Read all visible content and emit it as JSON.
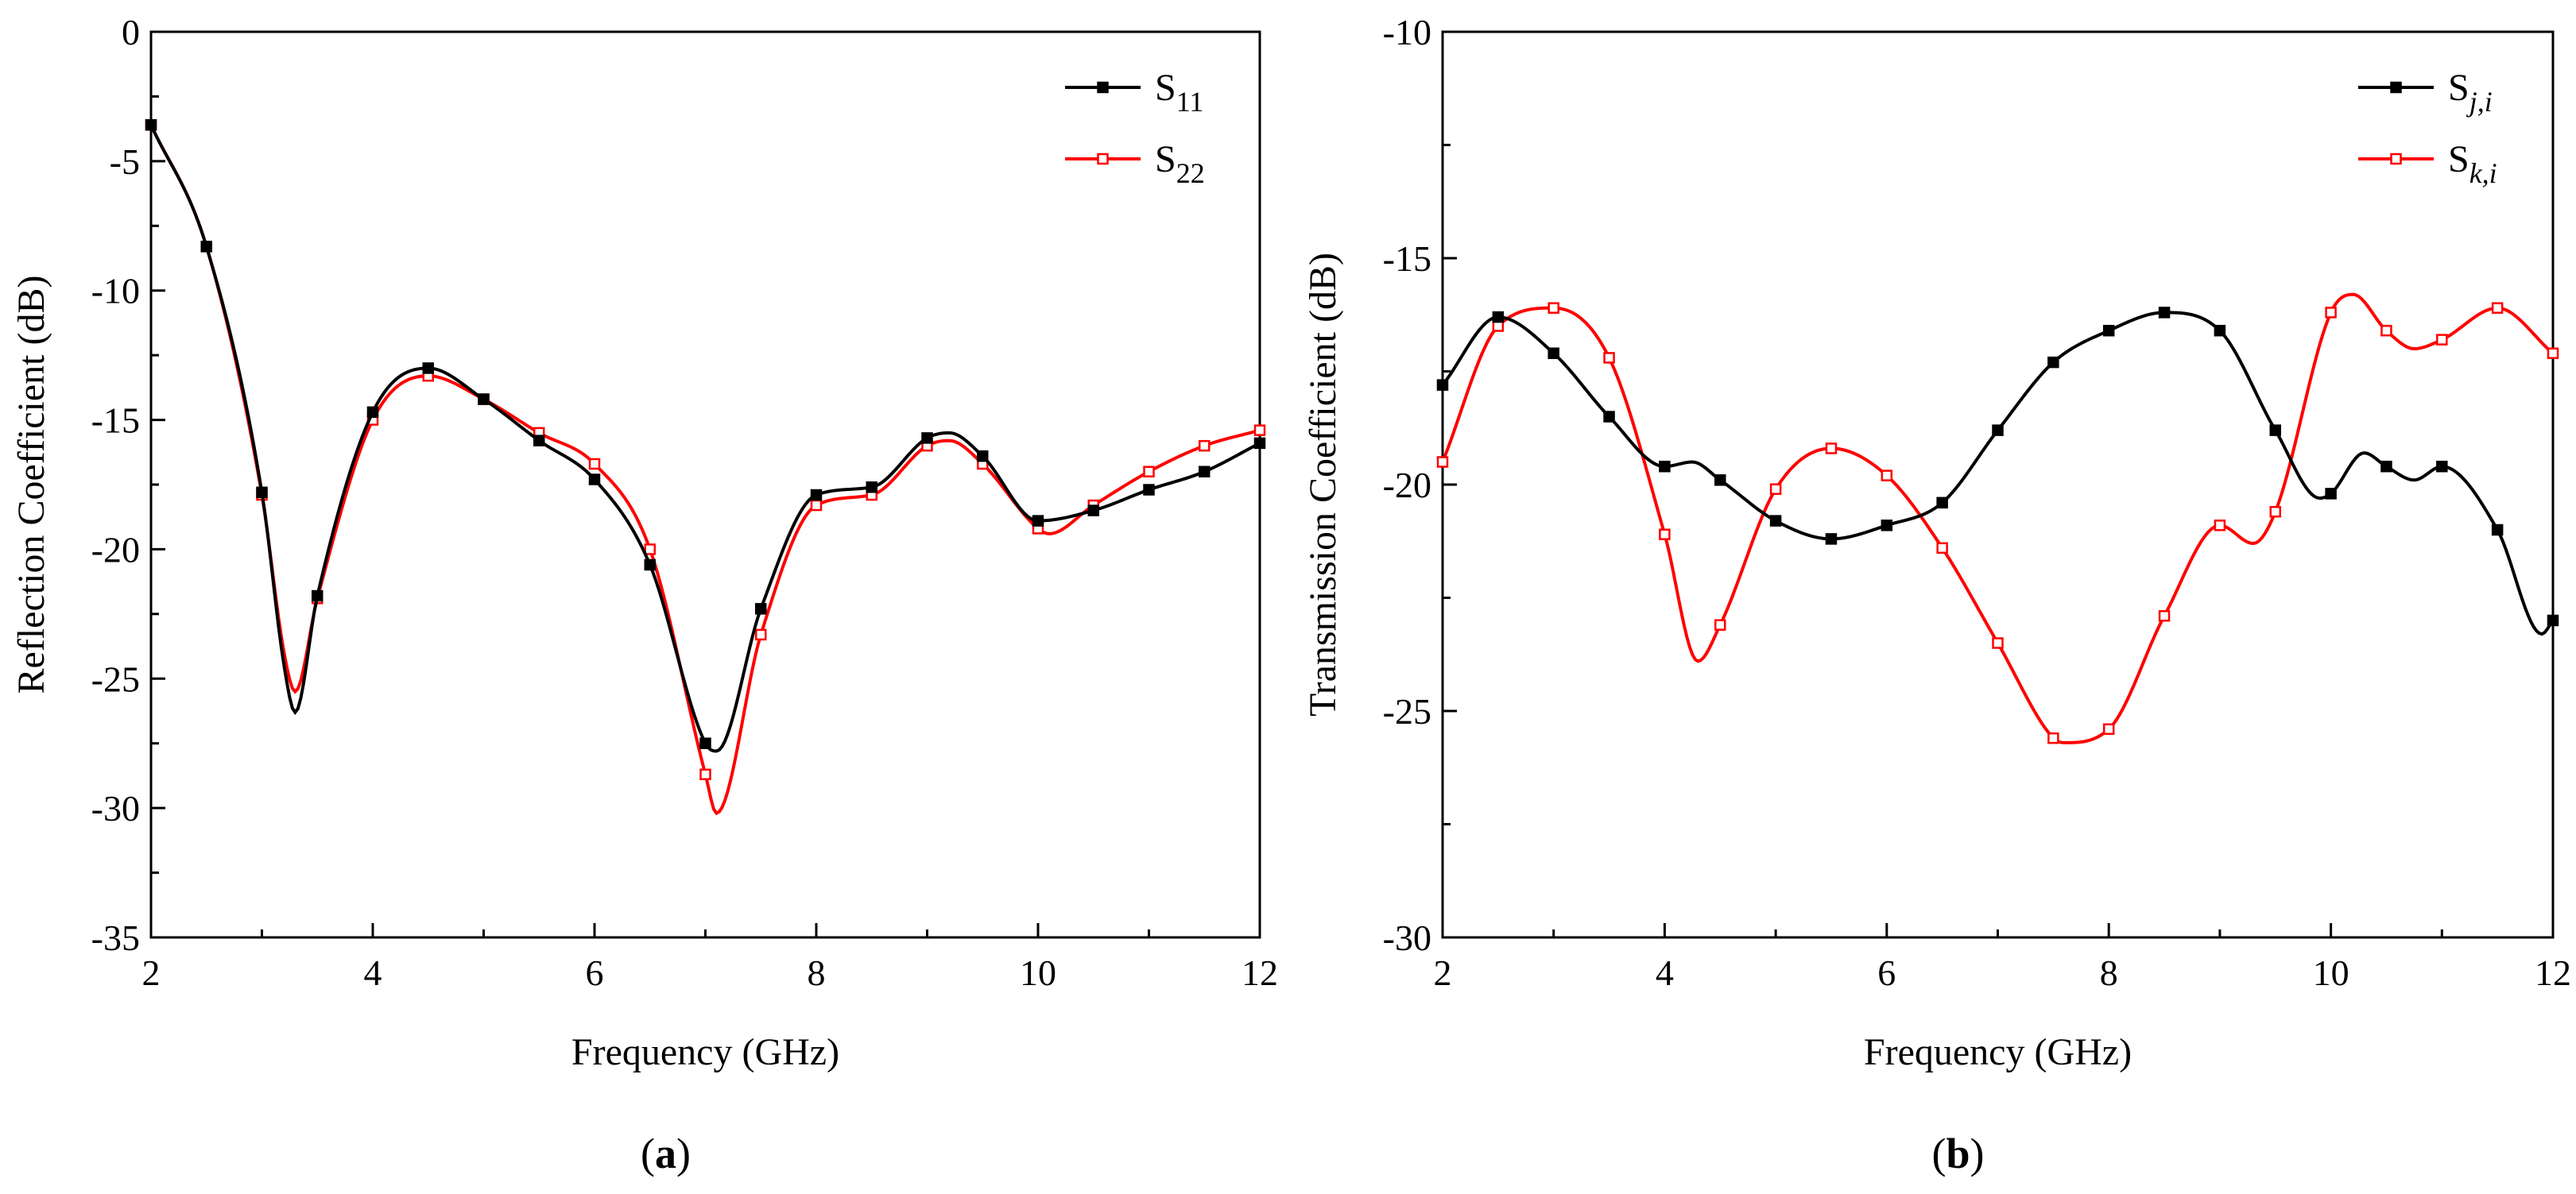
{
  "chart_data": [
    {
      "type": "line",
      "panel_label": "a",
      "xlabel": "Frequency (GHz)",
      "ylabel": "Reflection Coefficient (dB)",
      "xlim": [
        2,
        12
      ],
      "ylim": [
        -35,
        0
      ],
      "xticks": [
        2,
        4,
        6,
        8,
        10,
        12
      ],
      "yticks": [
        0,
        -5,
        -10,
        -15,
        -20,
        -25,
        -30,
        -35
      ],
      "legend_position": "top-right",
      "series": [
        {
          "name": "S11",
          "label_main": "S",
          "label_sub": "11",
          "color": "#000000",
          "marker": "filled-square",
          "x": [
            2.0,
            2.5,
            3.0,
            3.2,
            3.3,
            3.5,
            4.0,
            4.5,
            5.0,
            5.5,
            6.0,
            6.5,
            7.0,
            7.1,
            7.5,
            8.0,
            8.5,
            9.0,
            9.2,
            9.5,
            10.0,
            10.5,
            11.0,
            11.5,
            12.0
          ],
          "y": [
            -3.6,
            -8.3,
            -17.8,
            -24.5,
            -26.3,
            -21.8,
            -14.7,
            -13.0,
            -14.2,
            -15.8,
            -17.3,
            -20.6,
            -27.5,
            -27.8,
            -22.3,
            -17.9,
            -17.6,
            -15.7,
            -15.5,
            -16.4,
            -18.9,
            -18.5,
            -17.7,
            -17.0,
            -15.9
          ],
          "marker_x": [
            2.0,
            2.5,
            3.0,
            3.5,
            4.0,
            4.5,
            5.0,
            5.5,
            6.0,
            6.5,
            7.0,
            7.5,
            8.0,
            8.5,
            9.0,
            9.5,
            10.0,
            10.5,
            11.0,
            11.5,
            12.0
          ]
        },
        {
          "name": "S22",
          "label_main": "S",
          "label_sub": "22",
          "color": "#ff0000",
          "marker": "open-square",
          "x": [
            2.0,
            2.5,
            3.0,
            3.2,
            3.3,
            3.5,
            4.0,
            4.5,
            5.0,
            5.5,
            6.0,
            6.5,
            7.0,
            7.1,
            7.5,
            8.0,
            8.5,
            9.0,
            9.2,
            9.5,
            10.0,
            10.1,
            10.5,
            11.0,
            11.5,
            12.0
          ],
          "y": [
            -3.6,
            -8.3,
            -17.9,
            -24.0,
            -25.5,
            -21.9,
            -15.0,
            -13.3,
            -14.2,
            -15.5,
            -16.7,
            -20.0,
            -28.7,
            -30.2,
            -23.3,
            -18.3,
            -17.9,
            -16.0,
            -15.8,
            -16.7,
            -19.2,
            -19.4,
            -18.3,
            -17.0,
            -16.0,
            -15.4
          ],
          "marker_x": [
            2.0,
            2.5,
            3.0,
            3.5,
            4.0,
            4.5,
            5.0,
            5.5,
            6.0,
            6.5,
            7.0,
            7.5,
            8.0,
            8.5,
            9.0,
            9.5,
            10.0,
            10.5,
            11.0,
            11.5,
            12.0
          ]
        }
      ]
    },
    {
      "type": "line",
      "panel_label": "b",
      "xlabel": "Frequency (GHz)",
      "ylabel": "Transmission Coefficient (dB)",
      "xlim": [
        2,
        12
      ],
      "ylim": [
        -30,
        -10
      ],
      "xticks": [
        2,
        4,
        6,
        8,
        10,
        12
      ],
      "yticks": [
        -10,
        -15,
        -20,
        -25,
        -30
      ],
      "legend_position": "top-right",
      "series": [
        {
          "name": "Sj,i",
          "label_main": "S",
          "label_sub": "j,i",
          "color": "#000000",
          "marker": "filled-square",
          "x": [
            2.0,
            2.5,
            3.0,
            3.5,
            4.0,
            4.25,
            4.5,
            5.0,
            5.5,
            6.0,
            6.5,
            7.0,
            7.5,
            8.0,
            8.5,
            9.0,
            9.5,
            9.9,
            10.0,
            10.3,
            10.5,
            10.75,
            11.0,
            11.5,
            11.9,
            12.0
          ],
          "y": [
            -17.8,
            -16.3,
            -17.1,
            -18.5,
            -19.6,
            -19.5,
            -19.9,
            -20.8,
            -21.2,
            -20.9,
            -20.4,
            -18.8,
            -17.3,
            -16.6,
            -16.2,
            -16.6,
            -18.8,
            -20.3,
            -20.2,
            -19.3,
            -19.6,
            -19.9,
            -19.6,
            -21.0,
            -23.3,
            -23.0
          ],
          "marker_x": [
            2.0,
            2.5,
            3.0,
            3.5,
            4.0,
            4.5,
            5.0,
            5.5,
            6.0,
            6.5,
            7.0,
            7.5,
            8.0,
            8.5,
            9.0,
            9.5,
            10.0,
            10.5,
            11.0,
            11.5,
            12.0
          ]
        },
        {
          "name": "Sk,i",
          "label_main": "S",
          "label_sub": "k,i",
          "color": "#ff0000",
          "marker": "open-square",
          "x": [
            2.0,
            2.5,
            3.0,
            3.5,
            4.0,
            4.3,
            4.5,
            5.0,
            5.5,
            6.0,
            6.5,
            7.0,
            7.5,
            7.6,
            8.0,
            8.5,
            9.0,
            9.3,
            9.5,
            10.0,
            10.2,
            10.5,
            10.75,
            11.0,
            11.5,
            12.0
          ],
          "y": [
            -19.5,
            -16.5,
            -16.1,
            -17.2,
            -21.1,
            -23.9,
            -23.1,
            -20.1,
            -19.2,
            -19.8,
            -21.4,
            -23.5,
            -25.6,
            -25.7,
            -25.4,
            -22.9,
            -20.9,
            -21.3,
            -20.6,
            -16.2,
            -15.8,
            -16.6,
            -17.0,
            -16.8,
            -16.1,
            -17.1
          ],
          "marker_x": [
            2.0,
            2.5,
            3.0,
            3.5,
            4.0,
            4.5,
            5.0,
            5.5,
            6.0,
            6.5,
            7.0,
            7.5,
            8.0,
            8.5,
            9.0,
            9.5,
            10.0,
            10.5,
            11.0,
            11.5,
            12.0
          ]
        }
      ]
    }
  ]
}
